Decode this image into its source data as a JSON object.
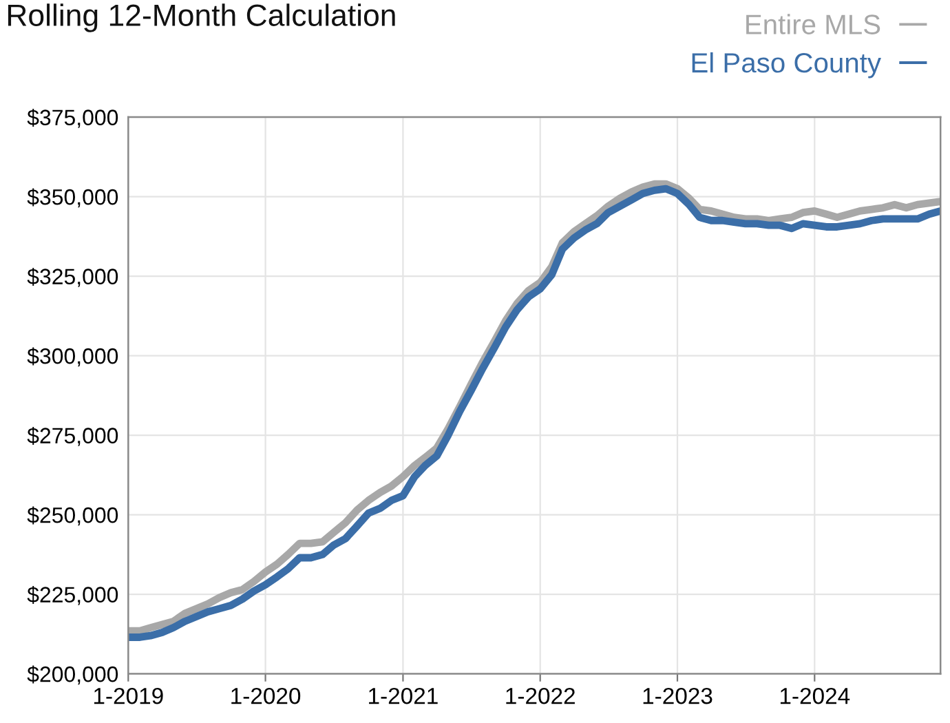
{
  "chart_data": {
    "type": "line",
    "title": "Rolling 12-Month Calculation",
    "x": [
      "2019-01",
      "2019-02",
      "2019-03",
      "2019-04",
      "2019-05",
      "2019-06",
      "2019-07",
      "2019-08",
      "2019-09",
      "2019-10",
      "2019-11",
      "2019-12",
      "2020-01",
      "2020-02",
      "2020-03",
      "2020-04",
      "2020-05",
      "2020-06",
      "2020-07",
      "2020-08",
      "2020-09",
      "2020-10",
      "2020-11",
      "2020-12",
      "2021-01",
      "2021-02",
      "2021-03",
      "2021-04",
      "2021-05",
      "2021-06",
      "2021-07",
      "2021-08",
      "2021-09",
      "2021-10",
      "2021-11",
      "2021-12",
      "2022-01",
      "2022-02",
      "2022-03",
      "2022-04",
      "2022-05",
      "2022-06",
      "2022-07",
      "2022-08",
      "2022-09",
      "2022-10",
      "2022-11",
      "2022-12",
      "2023-01",
      "2023-02",
      "2023-03",
      "2023-04",
      "2023-05",
      "2023-06",
      "2023-07",
      "2023-08",
      "2023-09",
      "2023-10",
      "2023-11",
      "2023-12",
      "2024-01",
      "2024-02",
      "2024-03",
      "2024-04",
      "2024-05",
      "2024-06",
      "2024-07",
      "2024-08",
      "2024-09",
      "2024-10",
      "2024-11",
      "2024-12"
    ],
    "series": [
      {
        "name": "Entire MLS",
        "color": "#a8a8a8",
        "values": [
          213500,
          213500,
          214500,
          215500,
          216500,
          219000,
          220500,
          222000,
          224000,
          225500,
          226500,
          229000,
          232000,
          234500,
          237500,
          241000,
          241000,
          241500,
          244500,
          247500,
          251500,
          254500,
          257000,
          259000,
          262000,
          265500,
          268000,
          271000,
          277000,
          284000,
          291000,
          298000,
          304500,
          311000,
          316500,
          320500,
          323000,
          328000,
          335500,
          339000,
          341500,
          344000,
          347000,
          349500,
          351500,
          353000,
          354000,
          354000,
          352500,
          349500,
          346000,
          345500,
          344500,
          343500,
          343000,
          343000,
          342500,
          343000,
          343500,
          345000,
          345500,
          344500,
          343500,
          344500,
          345500,
          346000,
          346500,
          347500,
          346500,
          347500,
          348000,
          348500
        ]
      },
      {
        "name": "El Paso County",
        "color": "#3b6ea8",
        "values": [
          211500,
          211500,
          212000,
          213000,
          214500,
          216500,
          218000,
          219500,
          220500,
          221500,
          223500,
          226000,
          228000,
          230500,
          233000,
          236500,
          236500,
          237500,
          240500,
          242500,
          246500,
          250500,
          252000,
          254500,
          256000,
          262000,
          265500,
          268500,
          275000,
          282500,
          289000,
          296000,
          302500,
          309000,
          314500,
          318500,
          321000,
          325500,
          333500,
          337000,
          339500,
          341500,
          345000,
          347000,
          349000,
          351000,
          352000,
          352500,
          351000,
          347500,
          343500,
          342500,
          342500,
          342000,
          341500,
          341500,
          341000,
          341000,
          340000,
          341500,
          341000,
          340500,
          340500,
          341000,
          341500,
          342500,
          343000,
          343000,
          343000,
          343000,
          344500,
          345500
        ]
      }
    ],
    "xlim": [
      "2019-01",
      "2024-12"
    ],
    "xticks": [
      {
        "value": "2019-01",
        "label": "1-2019"
      },
      {
        "value": "2020-01",
        "label": "1-2020"
      },
      {
        "value": "2021-01",
        "label": "1-2021"
      },
      {
        "value": "2022-01",
        "label": "1-2022"
      },
      {
        "value": "2023-01",
        "label": "1-2023"
      },
      {
        "value": "2024-01",
        "label": "1-2024"
      }
    ],
    "ylim": [
      200000,
      375000
    ],
    "yticks": [
      {
        "value": 200000,
        "label": "$200,000"
      },
      {
        "value": 225000,
        "label": "$225,000"
      },
      {
        "value": 250000,
        "label": "$250,000"
      },
      {
        "value": 275000,
        "label": "$275,000"
      },
      {
        "value": 300000,
        "label": "$300,000"
      },
      {
        "value": 325000,
        "label": "$325,000"
      },
      {
        "value": 350000,
        "label": "$350,000"
      },
      {
        "value": 375000,
        "label": "$375,000"
      }
    ],
    "grid": true,
    "legend": "top right"
  }
}
